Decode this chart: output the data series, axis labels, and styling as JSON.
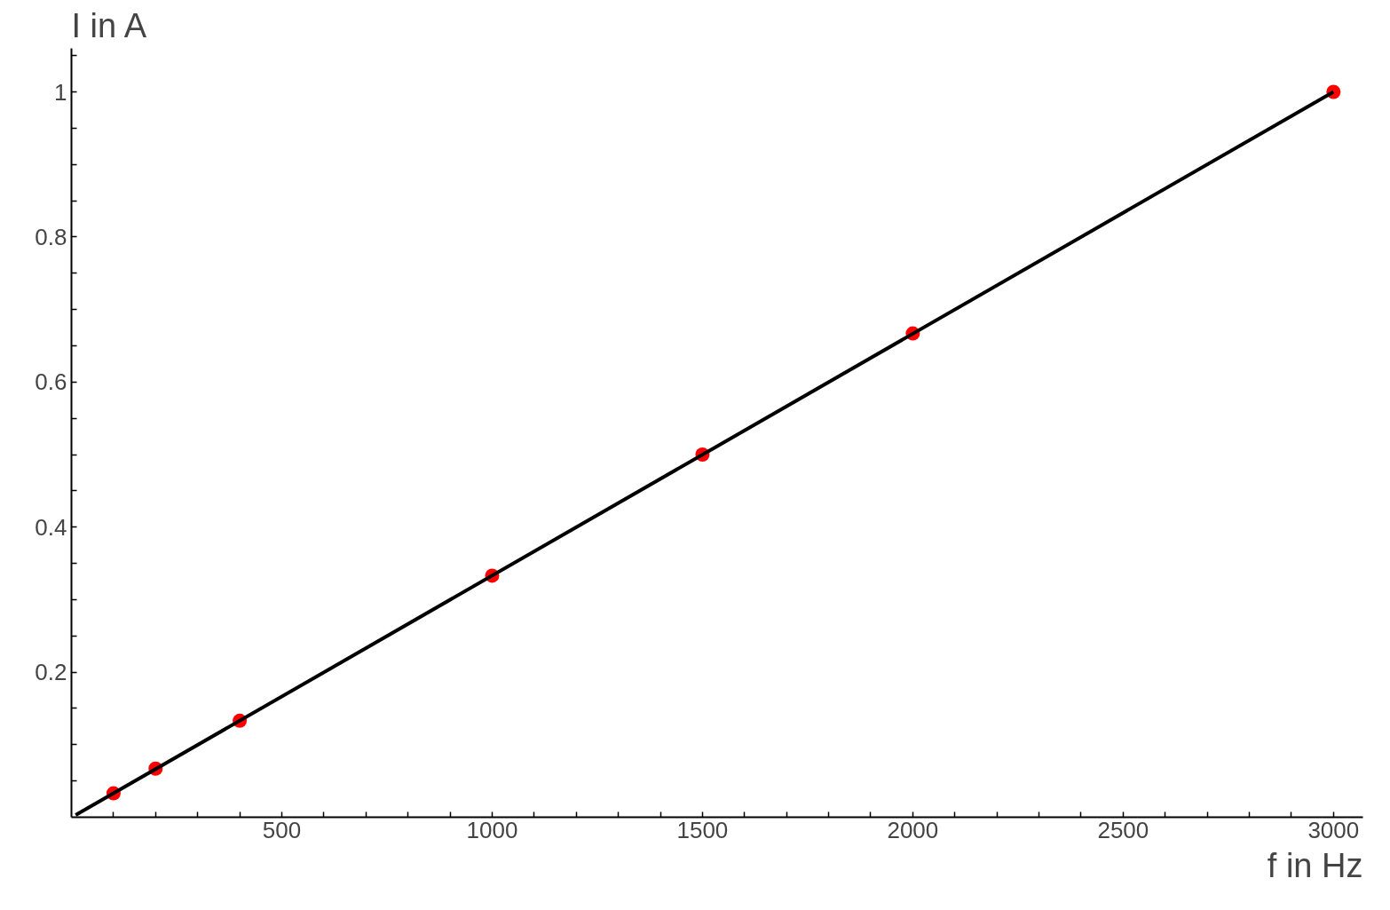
{
  "chart_data": {
    "type": "scatter",
    "xlabel": "f in Hz",
    "ylabel": "I in A",
    "xlim": [
      0,
      3070
    ],
    "ylim": [
      0,
      1.06
    ],
    "xticks": [
      {
        "value": 100,
        "label": null
      },
      {
        "value": 200,
        "label": null
      },
      {
        "value": 300,
        "label": null
      },
      {
        "value": 400,
        "label": null
      },
      500,
      {
        "value": 600,
        "label": null
      },
      {
        "value": 700,
        "label": null
      },
      {
        "value": 800,
        "label": null
      },
      {
        "value": 900,
        "label": null
      },
      1000,
      {
        "value": 1100,
        "label": null
      },
      {
        "value": 1200,
        "label": null
      },
      {
        "value": 1300,
        "label": null
      },
      {
        "value": 1400,
        "label": null
      },
      1500,
      {
        "value": 1600,
        "label": null
      },
      {
        "value": 1700,
        "label": null
      },
      {
        "value": 1800,
        "label": null
      },
      {
        "value": 1900,
        "label": null
      },
      2000,
      {
        "value": 2100,
        "label": null
      },
      {
        "value": 2200,
        "label": null
      },
      {
        "value": 2300,
        "label": null
      },
      {
        "value": 2400,
        "label": null
      },
      2500,
      {
        "value": 2600,
        "label": null
      },
      {
        "value": 2700,
        "label": null
      },
      {
        "value": 2800,
        "label": null
      },
      {
        "value": 2900,
        "label": null
      },
      3000
    ],
    "yticks": [
      {
        "value": 0.05,
        "label": null
      },
      {
        "value": 0.1,
        "label": null
      },
      {
        "value": 0.15,
        "label": null
      },
      0.2,
      {
        "value": 0.25,
        "label": null
      },
      {
        "value": 0.3,
        "label": null
      },
      {
        "value": 0.35,
        "label": null
      },
      0.4,
      {
        "value": 0.45,
        "label": null
      },
      {
        "value": 0.5,
        "label": null
      },
      {
        "value": 0.55,
        "label": null
      },
      0.6,
      {
        "value": 0.65,
        "label": null
      },
      {
        "value": 0.7,
        "label": null
      },
      {
        "value": 0.75,
        "label": null
      },
      0.8,
      {
        "value": 0.85,
        "label": null
      },
      {
        "value": 0.9,
        "label": null
      },
      {
        "value": 0.95,
        "label": null
      },
      1,
      {
        "value": 1.05,
        "label": null
      }
    ],
    "grid": false,
    "series": [
      {
        "color": "#ff0000",
        "marker": "circle",
        "x": [
          100,
          200,
          400,
          1000,
          1500,
          2000,
          3000
        ],
        "values": [
          0.033,
          0.067,
          0.133,
          0.333,
          0.5,
          0.667,
          1
        ]
      },
      {
        "type": "line",
        "color": "#000000",
        "x": [
          10,
          3000
        ],
        "values": [
          0.003,
          1
        ]
      }
    ]
  }
}
